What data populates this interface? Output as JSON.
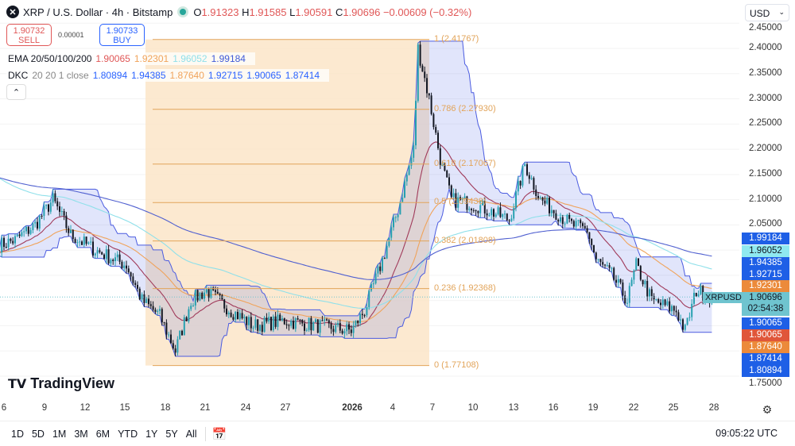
{
  "header": {
    "symbol": "XRP / U.S. Dollar · 4h · Bitstamp",
    "o_label": "O",
    "o": "1.91323",
    "h_label": "H",
    "h": "1.91585",
    "l_label": "L",
    "l": "1.90591",
    "c_label": "C",
    "c": "1.90696",
    "change": "−0.00609 (−0.32%)"
  },
  "trade": {
    "sell_price": "1.90732",
    "sell_label": "SELL",
    "spread": "0.00001",
    "buy_price": "1.90733",
    "buy_label": "BUY"
  },
  "ema": {
    "label": "EMA 20/50/100/200",
    "values": [
      "1.90065",
      "1.92301",
      "1.96052",
      "1.99184"
    ],
    "colors": [
      "#e05757",
      "#f0a35a",
      "#8fe0ea",
      "#3f5ad8"
    ]
  },
  "dkc": {
    "label": "DKC",
    "params": "20 20 1 close",
    "values": [
      "1.80894",
      "1.94385",
      "1.87640",
      "1.92715",
      "1.90065",
      "1.87414"
    ],
    "colors": [
      "#2962ff",
      "#2962ff",
      "#f0a35a",
      "#2962ff",
      "#2962ff",
      "#2962ff"
    ]
  },
  "currency": "USD",
  "price_ticks": [
    "2.45000",
    "2.40000",
    "2.35000",
    "2.30000",
    "2.25000",
    "2.20000",
    "2.15000",
    "2.10000",
    "2.05000",
    "1.75000"
  ],
  "price_labels": [
    {
      "text": "1.99184",
      "price": 1.99184,
      "color": "#1e5fe6"
    },
    {
      "text": "1.96052",
      "price": 1.96052,
      "color": "#8fe9f0",
      "dark": true
    },
    {
      "text": "1.94385",
      "price": 1.94385,
      "color": "#1e5fe6"
    },
    {
      "text": "1.92715",
      "price": 1.92715,
      "color": "#1e5fe6"
    },
    {
      "text": "1.92301",
      "price": 1.92301,
      "color": "#ec8a3a"
    },
    {
      "text": "1.90065",
      "price": 1.90065,
      "color": "#1e5fe6"
    },
    {
      "text": "1.90065",
      "price": 1.90065,
      "color": "#e0563a"
    },
    {
      "text": "1.87640",
      "price": 1.8764,
      "color": "#ec8a3a"
    },
    {
      "text": "1.87414",
      "price": 1.87414,
      "color": "#1e5fe6"
    },
    {
      "text": "1.80894",
      "price": 1.80894,
      "color": "#1e5fe6"
    }
  ],
  "last_price": {
    "symbol": "XRPUSD",
    "price": "1.90696",
    "countdown": "02:54:38",
    "color": "#6fc4cf"
  },
  "x_ticks": [
    "6",
    "9",
    "12",
    "15",
    "18",
    "21",
    "24",
    "27",
    "2026",
    "4",
    "7",
    "10",
    "13",
    "16",
    "19",
    "22",
    "25",
    "28"
  ],
  "fib": {
    "levels": [
      {
        "text": "1 (2.41767)",
        "price": 2.41767
      },
      {
        "text": "0.786 (2.27930)",
        "price": 2.2793
      },
      {
        "text": "0.618 (2.17067)",
        "price": 2.17067
      },
      {
        "text": "0.5 (2.09438)",
        "price": 2.09438
      },
      {
        "text": "0.382 (2.01808)",
        "price": 2.01808
      },
      {
        "text": "0.236 (1.92368)",
        "price": 1.92368
      },
      {
        "text": "0 (1.77108)",
        "price": 1.77108
      }
    ],
    "color": "#e2a45a"
  },
  "chart_data": {
    "type": "candlestick",
    "ylim": [
      1.75,
      2.45
    ],
    "up_color": "#26a0b0",
    "down_color": "#131722",
    "approx_closes": [
      [
        "2025-12-05T16:00",
        2.01
      ],
      [
        "2025-12-06T20:00",
        2.02
      ],
      [
        "2025-12-08T08:00",
        2.05
      ],
      [
        "2025-12-09T16:00",
        2.1
      ],
      [
        "2025-12-11T00:00",
        2.03
      ],
      [
        "2025-12-12T20:00",
        2.0
      ],
      [
        "2025-12-15T04:00",
        1.97
      ],
      [
        "2025-12-16T08:00",
        1.9
      ],
      [
        "2025-12-17T16:00",
        1.87
      ],
      [
        "2025-12-18T20:00",
        1.8
      ],
      [
        "2025-12-20T00:00",
        1.9
      ],
      [
        "2025-12-21T04:00",
        1.92
      ],
      [
        "2025-12-23T00:00",
        1.88
      ],
      [
        "2025-12-24T16:00",
        1.85
      ],
      [
        "2025-12-27T00:00",
        1.86
      ],
      [
        "2025-12-29T12:00",
        1.85
      ],
      [
        "2026-01-01T00:00",
        1.84
      ],
      [
        "2026-01-02T00:00",
        1.88
      ],
      [
        "2026-01-03T08:00",
        1.98
      ],
      [
        "2026-01-04T12:00",
        2.08
      ],
      [
        "2026-01-05T16:00",
        2.2
      ],
      [
        "2026-01-06T00:00",
        2.4
      ],
      [
        "2026-01-06T20:00",
        2.3
      ],
      [
        "2026-01-07T16:00",
        2.18
      ],
      [
        "2026-01-08T12:00",
        2.1
      ],
      [
        "2026-01-10T08:00",
        2.09
      ],
      [
        "2026-01-12T20:00",
        2.06
      ],
      [
        "2026-01-14T00:00",
        2.17
      ],
      [
        "2026-01-15T04:00",
        2.1
      ],
      [
        "2026-01-17T12:00",
        2.05
      ],
      [
        "2026-01-18T16:00",
        2.04
      ],
      [
        "2026-01-19T08:00",
        1.98
      ],
      [
        "2026-01-20T12:00",
        1.95
      ],
      [
        "2026-01-21T16:00",
        1.9
      ],
      [
        "2026-01-22T08:00",
        1.97
      ],
      [
        "2026-01-23T12:00",
        1.9
      ],
      [
        "2026-01-25T08:00",
        1.88
      ],
      [
        "2026-01-26T00:00",
        1.84
      ],
      [
        "2026-01-26T20:00",
        1.92
      ],
      [
        "2026-01-28T00:00",
        1.907
      ]
    ]
  },
  "brand": "TradingView",
  "ranges": [
    "1D",
    "5D",
    "1M",
    "3M",
    "6M",
    "YTD",
    "1Y",
    "5Y",
    "All"
  ],
  "clock": "09:05:22 UTC"
}
